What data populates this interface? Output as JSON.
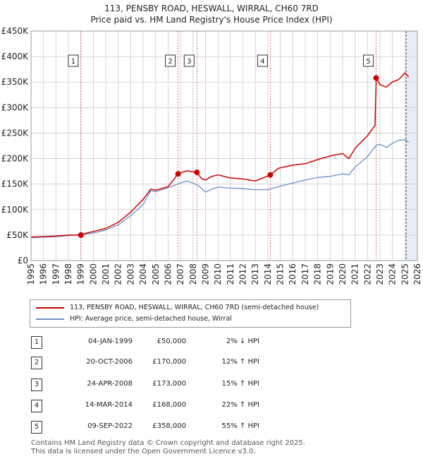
{
  "title_line1": "113, PENSBY ROAD, HESWALL, WIRRAL, CH60 7RD",
  "title_line2": "Price paid vs. HM Land Registry's House Price Index (HPI)",
  "colors": {
    "property": "#cc0000",
    "hpi": "#6a8fc6",
    "shade": "#e6edf8",
    "grid": "#cccccc"
  },
  "chart_data": {
    "type": "line",
    "title": "Price paid vs. HM Land Registry's House Price Index (HPI)",
    "xlabel": "",
    "ylabel": "",
    "xlim": [
      1995,
      2026
    ],
    "ylim": [
      0,
      450000
    ],
    "x_ticks": [
      1995,
      1996,
      1997,
      1998,
      1999,
      2000,
      2001,
      2002,
      2003,
      2004,
      2005,
      2006,
      2007,
      2008,
      2009,
      2010,
      2011,
      2012,
      2013,
      2014,
      2015,
      2016,
      2017,
      2018,
      2019,
      2020,
      2021,
      2022,
      2023,
      2024,
      2025,
      2026
    ],
    "y_ticks": [
      {
        "value": 0,
        "label": "£0"
      },
      {
        "value": 50000,
        "label": "£50K"
      },
      {
        "value": 100000,
        "label": "£100K"
      },
      {
        "value": 150000,
        "label": "£150K"
      },
      {
        "value": 200000,
        "label": "£200K"
      },
      {
        "value": 250000,
        "label": "£250K"
      },
      {
        "value": 300000,
        "label": "£300K"
      },
      {
        "value": 350000,
        "label": "£350K"
      },
      {
        "value": 400000,
        "label": "£400K"
      },
      {
        "value": 450000,
        "label": "£450K"
      }
    ],
    "grid": true,
    "shaded_region": [
      2025.1,
      2026
    ],
    "series": [
      {
        "name": "113, PENSBY ROAD, HESWALL, WIRRAL, CH60 7RD (semi-detached house)",
        "x": [
          1995,
          1996,
          1997,
          1998,
          1999.0,
          1999.5,
          2000,
          2001,
          2002,
          2003,
          2004,
          2004.6,
          2005,
          2006,
          2006.8,
          2007,
          2007.5,
          2008.3,
          2008.7,
          2009,
          2009.5,
          2010,
          2011,
          2012,
          2013,
          2014.2,
          2014.8,
          2015,
          2016,
          2017,
          2018,
          2019,
          2020,
          2020.5,
          2021,
          2022,
          2022.6,
          2022.7,
          2023,
          2023.5,
          2024,
          2024.5,
          2025,
          2025.3
        ],
        "values": [
          46000,
          47000,
          48000,
          50000,
          50000,
          54000,
          57000,
          63000,
          75000,
          95000,
          120000,
          140000,
          138000,
          145000,
          170000,
          172000,
          176000,
          173000,
          160000,
          158000,
          165000,
          168000,
          162000,
          160000,
          156000,
          168000,
          180000,
          182000,
          187000,
          190000,
          198000,
          205000,
          210000,
          200000,
          220000,
          245000,
          265000,
          358000,
          345000,
          340000,
          350000,
          355000,
          368000,
          360000
        ]
      },
      {
        "name": "HPI: Average price, semi-detached house, Wirral",
        "x": [
          1995,
          1996,
          1997,
          1998,
          1999,
          2000,
          2001,
          2002,
          2003,
          2004,
          2004.6,
          2005,
          2006,
          2007,
          2007.5,
          2008,
          2008.5,
          2009,
          2009.5,
          2010,
          2011,
          2012,
          2013,
          2014,
          2015,
          2016,
          2017,
          2018,
          2019,
          2020,
          2020.5,
          2021,
          2022,
          2022.7,
          2023,
          2023.5,
          2024,
          2024.5,
          2025,
          2025.3
        ],
        "values": [
          45000,
          46000,
          47000,
          49000,
          51000,
          54000,
          60000,
          70000,
          88000,
          110000,
          137000,
          135000,
          143000,
          152000,
          156000,
          152000,
          146000,
          134000,
          140000,
          144000,
          142000,
          141000,
          139000,
          139000,
          146000,
          152000,
          158000,
          163000,
          165000,
          170000,
          168000,
          183000,
          204000,
          226000,
          228000,
          222000,
          230000,
          236000,
          237000,
          232000
        ]
      }
    ],
    "transactions": [
      {
        "n": "1",
        "x": 1999.01,
        "price": 50000
      },
      {
        "n": "2",
        "x": 2006.8,
        "price": 170000
      },
      {
        "n": "3",
        "x": 2008.31,
        "price": 173000
      },
      {
        "n": "4",
        "x": 2014.2,
        "price": 168000
      },
      {
        "n": "5",
        "x": 2022.69,
        "price": 358000
      }
    ]
  },
  "legend": {
    "property_label": "113, PENSBY ROAD, HESWALL, WIRRAL, CH60 7RD (semi-detached house)",
    "hpi_label": "HPI: Average price, semi-detached house, Wirral"
  },
  "transactions": [
    {
      "n": "1",
      "date": "04-JAN-1999",
      "price": "£50,000",
      "hpi": "2% ↓ HPI"
    },
    {
      "n": "2",
      "date": "20-OCT-2006",
      "price": "£170,000",
      "hpi": "12% ↑ HPI"
    },
    {
      "n": "3",
      "date": "24-APR-2008",
      "price": "£173,000",
      "hpi": "15% ↑ HPI"
    },
    {
      "n": "4",
      "date": "14-MAR-2014",
      "price": "£168,000",
      "hpi": "22% ↑ HPI"
    },
    {
      "n": "5",
      "date": "09-SEP-2022",
      "price": "£358,000",
      "hpi": "55% ↑ HPI"
    }
  ],
  "footer_line1": "Contains HM Land Registry data © Crown copyright and database right 2025.",
  "footer_line2": "This data is licensed under the Open Government Licence v3.0."
}
